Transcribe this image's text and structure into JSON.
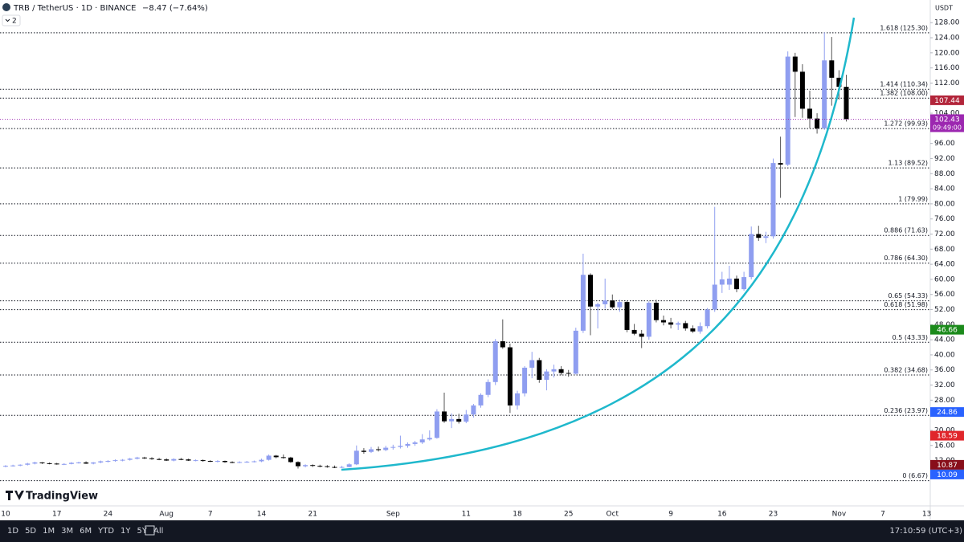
{
  "header": {
    "symbol": "TRB / TetherUS · 1D · BINANCE",
    "change": "−8.47 (−7.64%)",
    "indicators": "2"
  },
  "currency": "USDT",
  "brand": "TradingView",
  "toolbar": {
    "timeframes": [
      "1D",
      "5D",
      "1M",
      "3M",
      "6M",
      "YTD",
      "1Y",
      "5Y",
      "All"
    ],
    "clock": "17:10:59 (UTC+3)"
  },
  "chart_data": {
    "type": "candlestick",
    "up_color": "#8f9ef0",
    "down_color": "#000000",
    "categories": [
      "10",
      null,
      null,
      null,
      null,
      null,
      null,
      "17",
      null,
      null,
      null,
      null,
      null,
      null,
      "24",
      null,
      null,
      null,
      null,
      null,
      null,
      null,
      "Aug",
      null,
      null,
      null,
      null,
      null,
      "7",
      null,
      null,
      null,
      null,
      null,
      null,
      "14",
      null,
      null,
      null,
      null,
      null,
      null,
      "21",
      null,
      null,
      null,
      null,
      null,
      null,
      null,
      null,
      null,
      null,
      "Sep",
      null,
      null,
      null,
      null,
      null,
      null,
      null,
      null,
      null,
      "11",
      null,
      null,
      null,
      null,
      null,
      null,
      "18",
      null,
      null,
      null,
      null,
      null,
      null,
      "25",
      null,
      null,
      null,
      null,
      null,
      "Oct",
      null,
      null,
      null,
      null,
      null,
      null,
      null,
      "9",
      null,
      null,
      null,
      null,
      null,
      null,
      "16",
      null,
      null,
      null,
      null,
      null,
      null,
      "23",
      null,
      null,
      null,
      null,
      null,
      null,
      null,
      null,
      "Nov",
      null,
      null,
      null,
      null,
      null,
      "7",
      null,
      null,
      null,
      null,
      null,
      "13"
    ],
    "ohlc": [
      [
        10.4,
        10.8,
        10.2,
        10.6
      ],
      [
        10.6,
        10.9,
        10.4,
        10.7
      ],
      [
        10.7,
        11.0,
        10.5,
        10.9
      ],
      [
        10.9,
        11.4,
        10.7,
        11.2
      ],
      [
        11.2,
        11.7,
        11.0,
        11.5
      ],
      [
        11.5,
        11.6,
        11.1,
        11.3
      ],
      [
        11.3,
        11.5,
        11.0,
        11.2
      ],
      [
        11.2,
        11.4,
        10.9,
        11.0
      ],
      [
        11.0,
        11.3,
        10.8,
        11.1
      ],
      [
        11.1,
        11.6,
        11.0,
        11.4
      ],
      [
        11.4,
        11.7,
        11.2,
        11.5
      ],
      [
        11.5,
        11.8,
        11.1,
        11.2
      ],
      [
        11.2,
        11.6,
        11.0,
        11.5
      ],
      [
        11.5,
        12.0,
        11.3,
        11.8
      ],
      [
        11.8,
        12.1,
        11.5,
        11.9
      ],
      [
        11.9,
        12.3,
        11.7,
        12.1
      ],
      [
        12.1,
        12.4,
        11.8,
        12.2
      ],
      [
        12.2,
        12.7,
        12.0,
        12.5
      ],
      [
        12.5,
        13.0,
        12.3,
        12.8
      ],
      [
        12.8,
        13.0,
        12.4,
        12.6
      ],
      [
        12.6,
        12.9,
        12.2,
        12.4
      ],
      [
        12.4,
        12.7,
        12.1,
        12.3
      ],
      [
        12.3,
        12.6,
        11.9,
        12.0
      ],
      [
        12.0,
        12.6,
        11.8,
        12.4
      ],
      [
        12.4,
        12.7,
        12.1,
        12.3
      ],
      [
        12.3,
        12.5,
        11.9,
        12.0
      ],
      [
        12.0,
        12.3,
        11.8,
        12.1
      ],
      [
        12.1,
        12.3,
        11.7,
        11.9
      ],
      [
        11.9,
        12.1,
        11.6,
        11.8
      ],
      [
        11.8,
        12.1,
        11.5,
        11.9
      ],
      [
        11.9,
        12.0,
        11.4,
        11.6
      ],
      [
        11.6,
        11.8,
        11.3,
        11.5
      ],
      [
        11.5,
        11.8,
        11.3,
        11.6
      ],
      [
        11.6,
        11.9,
        11.4,
        11.7
      ],
      [
        11.7,
        12.0,
        11.5,
        11.8
      ],
      [
        11.8,
        12.5,
        11.6,
        12.2
      ],
      [
        12.2,
        13.6,
        12.0,
        13.3
      ],
      [
        13.3,
        13.5,
        12.6,
        12.9
      ],
      [
        12.9,
        13.6,
        12.5,
        12.8
      ],
      [
        12.8,
        13.0,
        11.4,
        11.6
      ],
      [
        11.6,
        11.8,
        9.9,
        10.5
      ],
      [
        10.5,
        11.0,
        10.2,
        10.8
      ],
      [
        10.8,
        11.0,
        10.3,
        10.6
      ],
      [
        10.6,
        10.9,
        10.2,
        10.5
      ],
      [
        10.5,
        10.8,
        10.1,
        10.3
      ],
      [
        10.3,
        10.7,
        10.0,
        10.2
      ],
      [
        10.2,
        10.6,
        10.0,
        10.3
      ],
      [
        10.3,
        11.3,
        10.2,
        11.0
      ],
      [
        11.0,
        16.0,
        10.8,
        14.6
      ],
      [
        14.6,
        15.3,
        13.8,
        14.3
      ],
      [
        14.3,
        15.6,
        14.0,
        15.0
      ],
      [
        15.0,
        15.7,
        14.4,
        14.8
      ],
      [
        14.8,
        15.9,
        14.5,
        15.4
      ],
      [
        15.4,
        16.2,
        14.9,
        15.6
      ],
      [
        15.6,
        18.6,
        15.2,
        15.9
      ],
      [
        15.9,
        16.8,
        15.4,
        16.4
      ],
      [
        16.4,
        17.2,
        15.9,
        16.8
      ],
      [
        16.8,
        19.0,
        16.4,
        17.6
      ],
      [
        17.6,
        20.0,
        17.3,
        18.0
      ],
      [
        18.0,
        25.6,
        17.8,
        25.0
      ],
      [
        25.0,
        30.0,
        22.0,
        22.4
      ],
      [
        22.4,
        24.5,
        20.6,
        23.0
      ],
      [
        23.0,
        24.4,
        21.8,
        22.3
      ],
      [
        22.3,
        25.4,
        21.9,
        24.2
      ],
      [
        24.2,
        27.0,
        23.4,
        26.6
      ],
      [
        26.6,
        29.8,
        26.0,
        29.4
      ],
      [
        29.4,
        33.5,
        28.8,
        32.8
      ],
      [
        32.8,
        44.2,
        32.0,
        43.6
      ],
      [
        43.6,
        49.4,
        41.6,
        42.0
      ],
      [
        42.0,
        43.0,
        24.6,
        26.6
      ],
      [
        26.6,
        30.5,
        25.5,
        29.8
      ],
      [
        29.8,
        37.0,
        29.0,
        36.6
      ],
      [
        36.6,
        40.8,
        33.8,
        38.6
      ],
      [
        38.6,
        39.2,
        32.6,
        33.4
      ],
      [
        33.4,
        36.2,
        30.6,
        35.6
      ],
      [
        35.6,
        37.4,
        34.0,
        36.2
      ],
      [
        36.2,
        37.0,
        34.6,
        35.2
      ],
      [
        35.2,
        36.0,
        34.2,
        35.0
      ],
      [
        35.0,
        47.2,
        34.8,
        46.4
      ],
      [
        46.4,
        66.8,
        45.8,
        61.2
      ],
      [
        61.2,
        61.6,
        45.2,
        52.8
      ],
      [
        52.8,
        53.8,
        47.0,
        53.4
      ],
      [
        53.4,
        60.2,
        52.2,
        54.4
      ],
      [
        54.4,
        56.0,
        52.2,
        52.6
      ],
      [
        52.6,
        54.6,
        51.4,
        54.0
      ],
      [
        54.0,
        54.2,
        46.0,
        46.6
      ],
      [
        46.6,
        48.2,
        45.2,
        45.6
      ],
      [
        45.6,
        46.6,
        41.8,
        44.8
      ],
      [
        44.8,
        54.2,
        44.0,
        53.8
      ],
      [
        53.8,
        54.6,
        48.6,
        49.2
      ],
      [
        49.2,
        50.4,
        47.8,
        48.6
      ],
      [
        48.6,
        49.8,
        47.0,
        48.0
      ],
      [
        48.0,
        48.8,
        46.6,
        48.4
      ],
      [
        48.4,
        49.0,
        46.4,
        47.0
      ],
      [
        47.0,
        47.8,
        45.8,
        46.2
      ],
      [
        46.2,
        48.6,
        45.6,
        47.6
      ],
      [
        47.6,
        52.4,
        47.0,
        52.0
      ],
      [
        52.0,
        79.2,
        51.4,
        58.6
      ],
      [
        58.6,
        62.0,
        56.4,
        60.0
      ],
      [
        58.6,
        63.6,
        57.2,
        60.2
      ],
      [
        60.2,
        61.0,
        56.6,
        57.4
      ],
      [
        57.4,
        62.0,
        57.0,
        60.6
      ],
      [
        60.6,
        74.0,
        60.0,
        72.0
      ],
      [
        72.0,
        74.2,
        70.2,
        71.0
      ],
      [
        71.0,
        72.6,
        69.6,
        71.4
      ],
      [
        71.4,
        92.0,
        70.8,
        90.8
      ],
      [
        90.8,
        97.8,
        81.6,
        90.4
      ],
      [
        90.4,
        120.4,
        90.0,
        119.0
      ],
      [
        119.0,
        120.0,
        103.0,
        115.0
      ],
      [
        115.0,
        117.0,
        102.8,
        105.2
      ],
      [
        105.2,
        110.0,
        100.0,
        102.6
      ],
      [
        102.6,
        104.0,
        98.6,
        100.0
      ],
      [
        100.0,
        125.4,
        99.6,
        118.0
      ],
      [
        118.0,
        124.2,
        106.0,
        113.4
      ],
      [
        113.4,
        115.4,
        107.6,
        111.0
      ],
      [
        111.0,
        114.2,
        101.8,
        102.43
      ],
      null,
      null,
      null,
      null,
      null,
      null,
      null,
      null,
      null,
      null,
      null
    ],
    "ylim": [
      0,
      134
    ],
    "yticks": [
      {
        "value": 128,
        "label": "128.00"
      },
      {
        "value": 124,
        "label": "124.00"
      },
      {
        "value": 120,
        "label": "120.00"
      },
      {
        "value": 116,
        "label": "116.00"
      },
      {
        "value": 112,
        "label": "112.00"
      },
      {
        "value": 104,
        "label": "104.00"
      },
      {
        "value": 96,
        "label": "96.00"
      },
      {
        "value": 92,
        "label": "92.00"
      },
      {
        "value": 88,
        "label": "88.00"
      },
      {
        "value": 84,
        "label": "84.00"
      },
      {
        "value": 80,
        "label": "80.00"
      },
      {
        "value": 76,
        "label": "76.00"
      },
      {
        "value": 72,
        "label": "72.00"
      },
      {
        "value": 68,
        "label": "68.00"
      },
      {
        "value": 64,
        "label": "64.00"
      },
      {
        "value": 60,
        "label": "60.00"
      },
      {
        "value": 56,
        "label": "56.00"
      },
      {
        "value": 52,
        "label": "52.00"
      },
      {
        "value": 48,
        "label": "48.00"
      },
      {
        "value": 44,
        "label": "44.00"
      },
      {
        "value": 40,
        "label": "40.00"
      },
      {
        "value": 36,
        "label": "36.00"
      },
      {
        "value": 32,
        "label": "32.00"
      },
      {
        "value": 28,
        "label": "28.00"
      },
      {
        "value": 20,
        "label": "20.00"
      },
      {
        "value": 16,
        "label": "16.00"
      },
      {
        "value": 12,
        "label": "12.00"
      }
    ],
    "fib_levels": [
      {
        "label": "1.618 (125.30)",
        "value": 125.3
      },
      {
        "label": "1.414 (110.34)",
        "value": 110.34
      },
      {
        "label": "1.382 (108.00)",
        "value": 108
      },
      {
        "label": "1.272 (99.93)",
        "value": 99.93
      },
      {
        "label": "1.13 (89.52)",
        "value": 89.52
      },
      {
        "label": "1 (79.99)",
        "value": 79.99
      },
      {
        "label": "0.886 (71.63)",
        "value": 71.63
      },
      {
        "label": "0.786 (64.30)",
        "value": 64.3
      },
      {
        "label": "0.65 (54.33)",
        "value": 54.33
      },
      {
        "label": "0.618 (51.98)",
        "value": 51.98
      },
      {
        "label": "0.5 (43.33)",
        "value": 43.33
      },
      {
        "label": "0.382 (34.68)",
        "value": 34.68
      },
      {
        "label": "0.236 (23.97)",
        "value": 23.97
      },
      {
        "label": "0 (6.67)",
        "value": 6.67
      }
    ],
    "price_labels": [
      {
        "value": 107.44,
        "color": "#b2253a"
      },
      {
        "value": 102.43,
        "sublabel": "09:49:00",
        "color": "#9c27b0"
      },
      {
        "value": 46.66,
        "color": "#1b8a1b"
      },
      {
        "value": 24.86,
        "color": "#2962ff"
      },
      {
        "value": 18.59,
        "color": "#e0262b"
      },
      {
        "value": 10.87,
        "color": "#880e1a"
      },
      {
        "value": 10.09,
        "color": "#2962ff"
      }
    ]
  }
}
